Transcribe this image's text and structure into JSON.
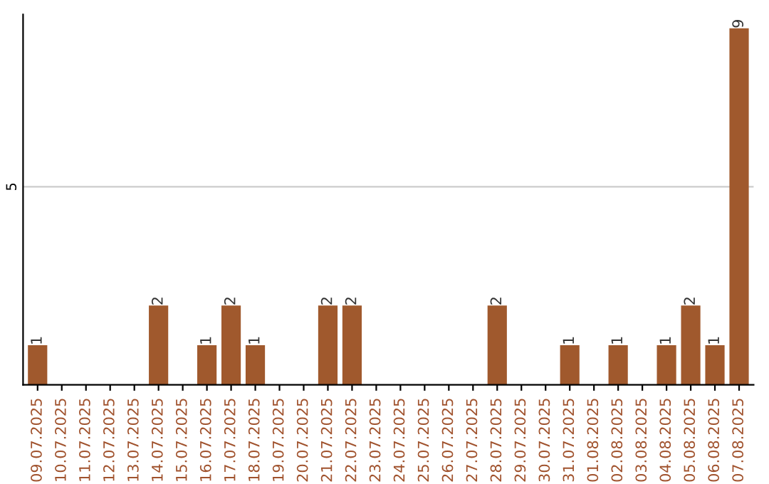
{
  "chart_data": {
    "type": "bar",
    "categories": [
      "09.07.2025",
      "10.07.2025",
      "11.07.2025",
      "12.07.2025",
      "13.07.2025",
      "14.07.2025",
      "15.07.2025",
      "16.07.2025",
      "17.07.2025",
      "18.07.2025",
      "19.07.2025",
      "20.07.2025",
      "21.07.2025",
      "22.07.2025",
      "23.07.2025",
      "24.07.2025",
      "25.07.2025",
      "26.07.2025",
      "27.07.2025",
      "28.07.2025",
      "29.07.2025",
      "30.07.2025",
      "31.07.2025",
      "01.08.2025",
      "02.08.2025",
      "03.08.2025",
      "04.08.2025",
      "05.08.2025",
      "06.08.2025",
      "07.08.2025"
    ],
    "values": [
      1,
      0,
      0,
      0,
      0,
      2,
      0,
      1,
      2,
      1,
      0,
      0,
      2,
      2,
      0,
      0,
      0,
      0,
      0,
      2,
      0,
      0,
      1,
      0,
      1,
      0,
      1,
      2,
      1,
      9
    ],
    "value_labels": [
      "1",
      null,
      null,
      null,
      null,
      "2",
      null,
      "1",
      "2",
      "1",
      null,
      null,
      "2",
      "2",
      null,
      null,
      null,
      null,
      null,
      "2",
      null,
      null,
      "1",
      null,
      "1",
      null,
      "1",
      "2",
      "1",
      "9"
    ],
    "color": "#a0592d",
    "ylim": [
      0,
      9.35
    ],
    "yticks": [
      5
    ],
    "grid": "y"
  }
}
